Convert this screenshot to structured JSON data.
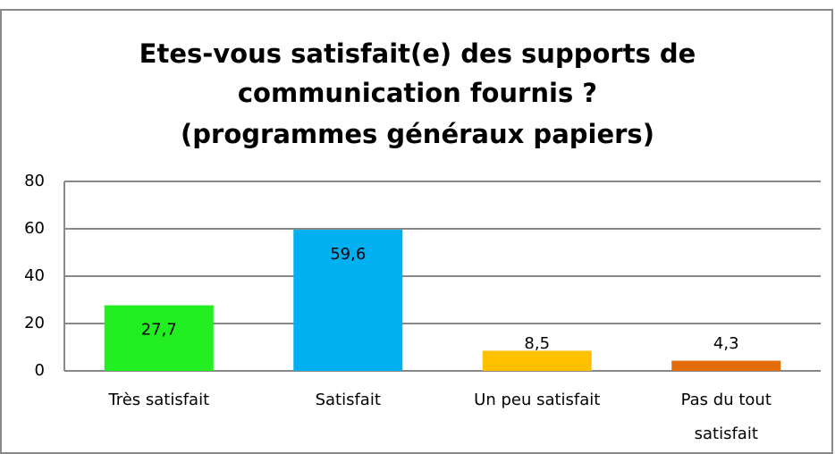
{
  "chart_data": {
    "type": "bar",
    "title": [
      "Etes-vous satisfait(e) des supports de",
      "communication fournis ?",
      "(programmes généraux papiers)"
    ],
    "categories": [
      "Très satisfait",
      "Satisfait",
      "Un peu satisfait",
      "Pas du tout satisfait"
    ],
    "values": [
      27.7,
      59.6,
      8.5,
      4.3
    ],
    "value_labels": [
      "27,7",
      "59,6",
      "8,5",
      "4,3"
    ],
    "colors": [
      "#22ee22",
      "#00b0f0",
      "#ffc000",
      "#e36c09"
    ],
    "ylim": [
      0,
      80
    ],
    "yticks": [
      0,
      20,
      40,
      60,
      80
    ],
    "grid": true
  }
}
